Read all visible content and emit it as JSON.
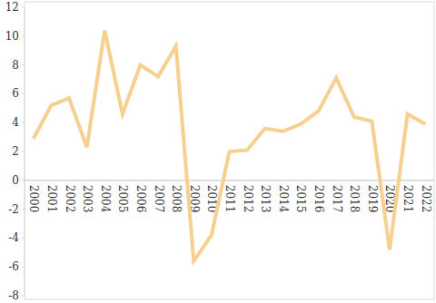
{
  "chart_data": {
    "type": "line",
    "categories": [
      "2000",
      "2001",
      "2002",
      "2003",
      "2004",
      "2005",
      "2006",
      "2007",
      "2008",
      "2009",
      "2010",
      "2011",
      "2012",
      "2013",
      "2014",
      "2015",
      "2016",
      "2017",
      "2018",
      "2019",
      "2020",
      "2021",
      "2022"
    ],
    "values": [
      2.9,
      5.2,
      5.7,
      2.3,
      10.4,
      4.6,
      8.0,
      7.2,
      9.3,
      -5.6,
      -3.8,
      2.0,
      2.1,
      3.6,
      3.4,
      3.9,
      4.8,
      7.1,
      4.4,
      4.1,
      -4.8,
      4.6,
      3.9
    ],
    "color": "#f6d08e",
    "ylim": [
      -8,
      12
    ],
    "yticks": [
      -8,
      -6,
      -4,
      -2,
      0,
      2,
      4,
      6,
      8,
      10,
      12
    ],
    "grid": false
  }
}
